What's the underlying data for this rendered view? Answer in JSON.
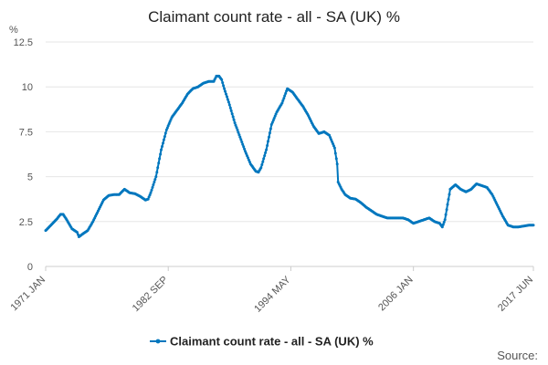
{
  "colors": {
    "series": "#0077be",
    "grid": "#e6e6e6",
    "axis": "#cccccc",
    "text": "#222222"
  },
  "chart_data": {
    "type": "line",
    "title": "Claimant count rate - all - SA (UK) %",
    "ylabel": "%",
    "ylim": [
      0,
      12.5
    ],
    "y_ticks": [
      0,
      2.5,
      5,
      7.5,
      10,
      12.5
    ],
    "y_tick_labels": [
      "0",
      "2.5",
      "5",
      "7.5",
      "10",
      "12.5"
    ],
    "x_range": [
      "1971-01",
      "2017-06"
    ],
    "x_tick_labels": [
      "1971 JAN",
      "1982 SEP",
      "1994 MAY",
      "2006 JAN",
      "2017 JUN"
    ],
    "x_tick_dates": [
      "1971-01",
      "1982-09",
      "1994-05",
      "2006-01",
      "2017-06"
    ],
    "grid": true,
    "legend_position": "bottom",
    "source_label": "Source:",
    "series": [
      {
        "name": "Claimant count rate - all - SA (UK) %",
        "points": [
          [
            "1971-01",
            2.0
          ],
          [
            "1971-07",
            2.3
          ],
          [
            "1972-01",
            2.6
          ],
          [
            "1972-06",
            2.9
          ],
          [
            "1972-09",
            2.9
          ],
          [
            "1973-01",
            2.6
          ],
          [
            "1973-07",
            2.1
          ],
          [
            "1974-01",
            1.9
          ],
          [
            "1974-03",
            1.65
          ],
          [
            "1974-07",
            1.8
          ],
          [
            "1975-01",
            2.0
          ],
          [
            "1975-07",
            2.5
          ],
          [
            "1976-01",
            3.1
          ],
          [
            "1976-07",
            3.7
          ],
          [
            "1977-01",
            3.95
          ],
          [
            "1977-07",
            4.0
          ],
          [
            "1978-01",
            4.0
          ],
          [
            "1978-07",
            4.3
          ],
          [
            "1979-01",
            4.1
          ],
          [
            "1979-07",
            4.05
          ],
          [
            "1980-01",
            3.9
          ],
          [
            "1980-07",
            3.7
          ],
          [
            "1980-10",
            3.75
          ],
          [
            "1981-01",
            4.1
          ],
          [
            "1981-07",
            5.0
          ],
          [
            "1982-01",
            6.5
          ],
          [
            "1982-07",
            7.6
          ],
          [
            "1983-01",
            8.3
          ],
          [
            "1983-07",
            8.7
          ],
          [
            "1984-01",
            9.1
          ],
          [
            "1984-07",
            9.6
          ],
          [
            "1985-01",
            9.9
          ],
          [
            "1985-07",
            10.0
          ],
          [
            "1986-01",
            10.2
          ],
          [
            "1986-07",
            10.3
          ],
          [
            "1987-01",
            10.3
          ],
          [
            "1987-04",
            10.6
          ],
          [
            "1987-07",
            10.6
          ],
          [
            "1987-10",
            10.4
          ],
          [
            "1988-01",
            9.9
          ],
          [
            "1988-07",
            9.0
          ],
          [
            "1989-01",
            8.0
          ],
          [
            "1989-07",
            7.2
          ],
          [
            "1990-01",
            6.4
          ],
          [
            "1990-07",
            5.7
          ],
          [
            "1991-01",
            5.3
          ],
          [
            "1991-04",
            5.25
          ],
          [
            "1991-07",
            5.5
          ],
          [
            "1992-01",
            6.5
          ],
          [
            "1992-07",
            7.9
          ],
          [
            "1993-01",
            8.6
          ],
          [
            "1993-07",
            9.1
          ],
          [
            "1994-01",
            9.9
          ],
          [
            "1994-07",
            9.7
          ],
          [
            "1995-01",
            9.3
          ],
          [
            "1995-07",
            8.9
          ],
          [
            "1996-01",
            8.4
          ],
          [
            "1996-07",
            7.8
          ],
          [
            "1997-01",
            7.4
          ],
          [
            "1997-07",
            7.5
          ],
          [
            "1998-01",
            7.3
          ],
          [
            "1998-07",
            6.6
          ],
          [
            "1998-10",
            5.7
          ],
          [
            "1998-11",
            4.7
          ],
          [
            "1999-03",
            4.3
          ],
          [
            "1999-07",
            4.0
          ],
          [
            "2000-01",
            3.8
          ],
          [
            "2000-07",
            3.75
          ],
          [
            "2001-01",
            3.55
          ],
          [
            "2001-07",
            3.3
          ],
          [
            "2002-01",
            3.1
          ],
          [
            "2002-07",
            2.9
          ],
          [
            "2003-01",
            2.8
          ],
          [
            "2003-07",
            2.7
          ],
          [
            "2004-01",
            2.7
          ],
          [
            "2005-01",
            2.7
          ],
          [
            "2005-07",
            2.6
          ],
          [
            "2006-01",
            2.4
          ],
          [
            "2006-07",
            2.5
          ],
          [
            "2007-01",
            2.6
          ],
          [
            "2007-07",
            2.7
          ],
          [
            "2008-01",
            2.5
          ],
          [
            "2008-07",
            2.4
          ],
          [
            "2008-10",
            2.2
          ],
          [
            "2009-01",
            2.6
          ],
          [
            "2009-07",
            4.3
          ],
          [
            "2010-01",
            4.55
          ],
          [
            "2010-07",
            4.3
          ],
          [
            "2011-01",
            4.15
          ],
          [
            "2011-07",
            4.3
          ],
          [
            "2012-01",
            4.6
          ],
          [
            "2012-07",
            4.5
          ],
          [
            "2013-01",
            4.4
          ],
          [
            "2013-07",
            4.0
          ],
          [
            "2014-01",
            3.4
          ],
          [
            "2014-07",
            2.8
          ],
          [
            "2015-01",
            2.3
          ],
          [
            "2015-07",
            2.2
          ],
          [
            "2016-01",
            2.2
          ],
          [
            "2016-07",
            2.25
          ],
          [
            "2017-01",
            2.3
          ],
          [
            "2017-06",
            2.3
          ]
        ]
      }
    ]
  }
}
